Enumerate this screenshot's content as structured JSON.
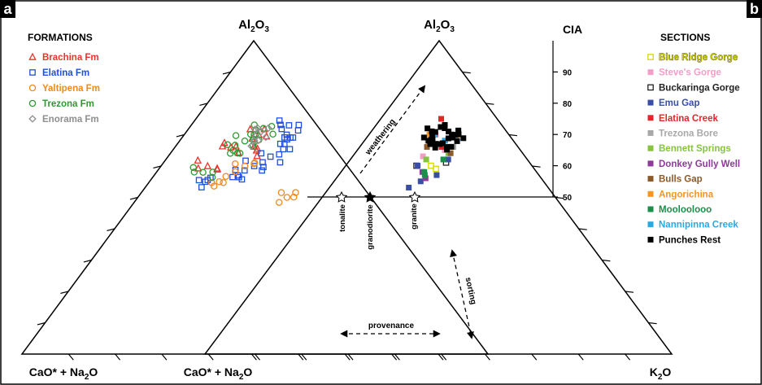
{
  "panels": {
    "a": {
      "label": "a"
    },
    "b": {
      "label": "b"
    }
  },
  "formations": {
    "title": "FORMATIONS",
    "items": [
      {
        "name": "Brachina Fm",
        "color": "#e8342b",
        "marker": "triangle-open"
      },
      {
        "name": "Elatina Fm",
        "color": "#1f4fe0",
        "marker": "square-open"
      },
      {
        "name": "Yaltipena Fm",
        "color": "#f08a1c",
        "marker": "circle-open"
      },
      {
        "name": "Trezona Fm",
        "color": "#2f9a2f",
        "marker": "circle-open"
      },
      {
        "name": "Enorama Fm",
        "color": "#8f8f8f",
        "marker": "diamond-open"
      }
    ]
  },
  "sections": {
    "title": "SECTIONS",
    "items": [
      {
        "name": "Blue Ridge Gorge",
        "color": "#d9d900",
        "marker": "square-open"
      },
      {
        "name": "Steve's Gorge",
        "color": "#f29ec8",
        "marker": "square"
      },
      {
        "name": "Buckaringa Gorge",
        "color": "#222222",
        "marker": "square-open"
      },
      {
        "name": "Emu Gap",
        "color": "#3a4fa3",
        "marker": "square"
      },
      {
        "name": "Elatina Creek",
        "color": "#e8242b",
        "marker": "square"
      },
      {
        "name": "Trezona Bore",
        "color": "#a8a8a8",
        "marker": "square"
      },
      {
        "name": "Bennett Springs",
        "color": "#86c440",
        "marker": "square"
      },
      {
        "name": "Donkey Gully Well",
        "color": "#8e3a9a",
        "marker": "square"
      },
      {
        "name": "Bulls Gap",
        "color": "#8b5a2b",
        "marker": "square"
      },
      {
        "name": "Angorichina",
        "color": "#f7941d",
        "marker": "square"
      },
      {
        "name": "Mooloolooo",
        "color": "#1a8f4a",
        "marker": "square"
      },
      {
        "name": "Nannipinna Creek",
        "color": "#2aa9e0",
        "marker": "square"
      },
      {
        "name": "Punches Rest",
        "color": "#000000",
        "marker": "square"
      }
    ]
  },
  "apex_labels": {
    "top_a": "Al2O3",
    "top_b": "Al2O3",
    "left_a": "CaO* + Na2O",
    "left_b": "CaO* + Na2O",
    "right_b": "K2O"
  },
  "cia": {
    "title": "CIA",
    "ticks": [
      "90",
      "80",
      "70",
      "60",
      "50"
    ]
  },
  "annotations": {
    "weathering": "weathering",
    "sorting": "sorting",
    "provenance": "provenance",
    "tonalite": "tonalite",
    "granodiorite": "granodiorite",
    "granite": "granite"
  },
  "chart_data": [
    {
      "type": "scatter",
      "subtype": "ternary",
      "panel": "a",
      "apices": [
        "Al2O3",
        "CaO* + Na2O",
        "K2O"
      ],
      "legend_title": "FORMATIONS",
      "legend_position": "top-left",
      "series": [
        {
          "name": "Brachina Fm",
          "points": [
            [
              0.6,
              0.3,
              0.1
            ],
            [
              0.66,
              0.22,
              0.12
            ],
            [
              0.65,
              0.17,
              0.18
            ],
            [
              0.7,
              0.14,
              0.16
            ]
          ]
        },
        {
          "name": "Elatina Fm",
          "points": [
            [
              0.55,
              0.33,
              0.12
            ],
            [
              0.57,
              0.25,
              0.18
            ],
            [
              0.6,
              0.2,
              0.2
            ],
            [
              0.63,
              0.15,
              0.22
            ],
            [
              0.67,
              0.1,
              0.23
            ],
            [
              0.7,
              0.08,
              0.22
            ],
            [
              0.73,
              0.06,
              0.21
            ]
          ]
        },
        {
          "name": "Yaltipena Fm",
          "points": [
            [
              0.55,
              0.3,
              0.15
            ],
            [
              0.6,
              0.22,
              0.18
            ],
            [
              0.5,
              0.18,
              0.32
            ]
          ]
        },
        {
          "name": "Trezona Fm",
          "points": [
            [
              0.58,
              0.32,
              0.1
            ],
            [
              0.65,
              0.22,
              0.13
            ],
            [
              0.7,
              0.15,
              0.15
            ],
            [
              0.72,
              0.12,
              0.16
            ],
            [
              0.68,
              0.18,
              0.14
            ]
          ]
        },
        {
          "name": "Enorama Fm",
          "points": [
            [
              0.68,
              0.16,
              0.16
            ],
            [
              0.71,
              0.13,
              0.16
            ]
          ]
        }
      ]
    },
    {
      "type": "scatter",
      "subtype": "ternary",
      "panel": "b",
      "apices": [
        "Al2O3",
        "CaO* + Na2O",
        "K2O"
      ],
      "cia_axis": {
        "label": "CIA",
        "range": [
          50,
          100
        ],
        "ticks": [
          90,
          80,
          70,
          60,
          50
        ]
      },
      "legend_title": "SECTIONS",
      "legend_position": "right",
      "reference_points": [
        {
          "name": "tonalite",
          "cia": 50
        },
        {
          "name": "granodiorite",
          "cia": 50
        },
        {
          "name": "granite",
          "cia": 50
        }
      ],
      "series": [
        {
          "name": "Blue Ridge Gorge",
          "cia": [
            60,
            59
          ]
        },
        {
          "name": "Steve's Gorge",
          "cia": [
            63,
            65,
            67
          ]
        },
        {
          "name": "Buckaringa Gorge",
          "cia": [
            61,
            60
          ]
        },
        {
          "name": "Emu Gap",
          "cia": [
            55,
            57,
            60,
            62,
            53
          ]
        },
        {
          "name": "Elatina Creek",
          "cia": [
            75,
            68,
            66,
            70
          ]
        },
        {
          "name": "Trezona Bore",
          "cia": [
            66,
            68
          ]
        },
        {
          "name": "Bennett Springs",
          "cia": [
            62,
            64
          ]
        },
        {
          "name": "Donkey Gully Well",
          "cia": [
            58,
            56
          ]
        },
        {
          "name": "Bulls Gap",
          "cia": [
            64,
            66
          ]
        },
        {
          "name": "Angorichina",
          "cia": [
            67,
            69,
            70
          ]
        },
        {
          "name": "Mooloolooo",
          "cia": [
            57,
            58,
            62
          ]
        },
        {
          "name": "Nannipinna Creek",
          "cia": [
            71,
            70,
            68
          ]
        },
        {
          "name": "Punches Rest",
          "cia": [
            68,
            70,
            71,
            69,
            67,
            72,
            66
          ]
        }
      ]
    }
  ]
}
